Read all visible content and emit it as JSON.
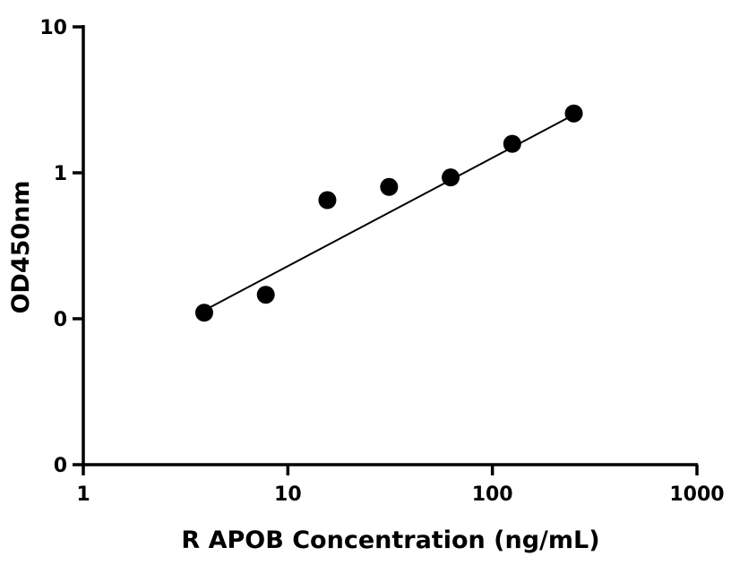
{
  "chart_data": {
    "type": "scatter",
    "title": "",
    "xlabel": "R APOB Concentration (ng/mL)",
    "ylabel": "OD450nm",
    "x_scale": "log",
    "y_scale": "log",
    "xlim": [
      1,
      1000
    ],
    "ylim": [
      0.01,
      10
    ],
    "x_ticks": [
      {
        "value": 1,
        "label": "1"
      },
      {
        "value": 10,
        "label": "10"
      },
      {
        "value": 100,
        "label": "100"
      },
      {
        "value": 1000,
        "label": "1000"
      }
    ],
    "y_ticks": [
      {
        "value": 0.01,
        "label": "0"
      },
      {
        "value": 0.1,
        "label": "0"
      },
      {
        "value": 1,
        "label": "1"
      },
      {
        "value": 10,
        "label": "10"
      }
    ],
    "series": [
      {
        "x": [
          3.9,
          7.8,
          15.6,
          31.25,
          62.5,
          125,
          250
        ],
        "y": [
          0.11,
          0.146,
          0.65,
          0.8,
          0.93,
          1.58,
          2.55
        ]
      }
    ],
    "fit_line": {
      "x": [
        3.9,
        250
      ],
      "y": [
        0.114,
        2.5
      ]
    },
    "grid": false,
    "legend": "none",
    "colors": {
      "points": "#000000",
      "line": "#000000",
      "axis": "#000000"
    }
  }
}
